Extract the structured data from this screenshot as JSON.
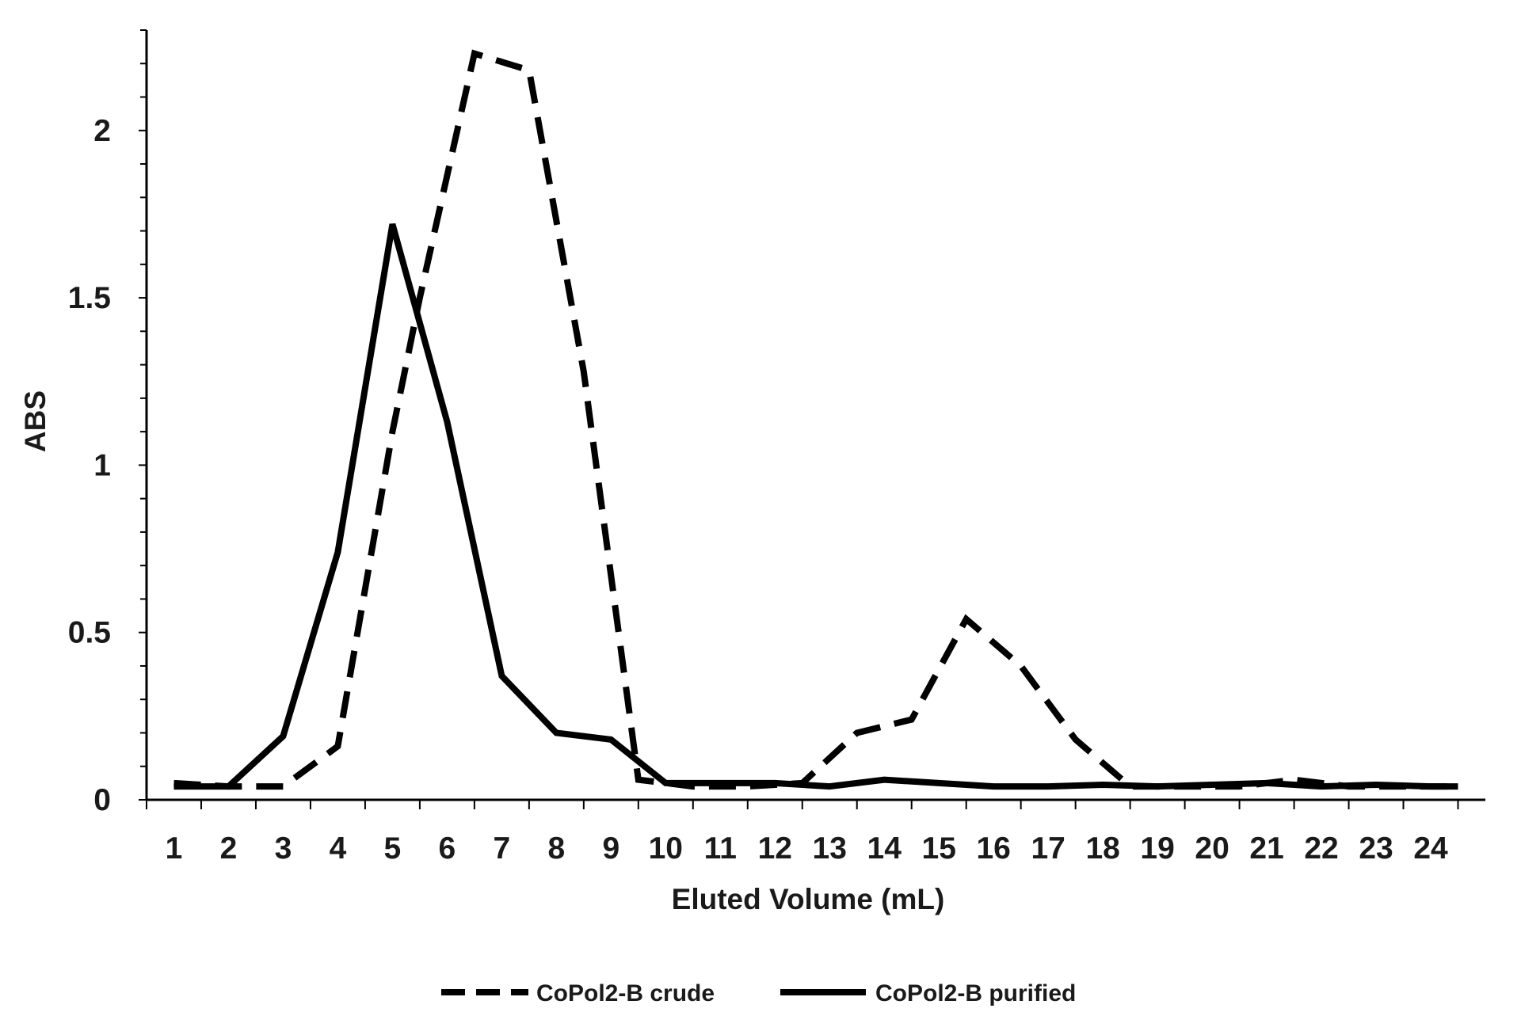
{
  "chart_data": {
    "type": "line",
    "title": "",
    "xlabel": "Eluted Volume (mL)",
    "ylabel": "ABS",
    "categories": [
      "1",
      "2",
      "3",
      "4",
      "5",
      "6",
      "7",
      "8",
      "9",
      "10",
      "11",
      "12",
      "13",
      "14",
      "15",
      "16",
      "17",
      "18",
      "19",
      "20",
      "21",
      "22",
      "23",
      "24"
    ],
    "y_ticks": [
      "0",
      "0.5",
      "1",
      "1.5",
      "2"
    ],
    "ylim": [
      0,
      2.3
    ],
    "grid": false,
    "legend_position": "bottom",
    "series": [
      {
        "name": "CoPol2-B crude",
        "style": "dashed",
        "color": "#000000",
        "x": [
          1,
          2,
          3,
          4,
          5,
          5.5,
          6.5,
          7.5,
          8.5,
          9.5,
          10.5,
          11.5,
          12.5,
          13.5,
          14.5,
          15.5,
          16.5,
          17.5,
          18.5,
          19.5,
          20.5,
          21.5,
          22.5,
          23.5,
          24.5
        ],
        "values": [
          0.05,
          0.04,
          0.04,
          0.16,
          1.1,
          1.5,
          2.23,
          2.18,
          1.28,
          0.06,
          0.04,
          0.04,
          0.05,
          0.2,
          0.24,
          0.54,
          0.4,
          0.18,
          0.04,
          0.04,
          0.04,
          0.06,
          0.04,
          0.04,
          0.04
        ]
      },
      {
        "name": "CoPol2-B purified",
        "style": "solid",
        "color": "#000000",
        "x": [
          1,
          2,
          3,
          4,
          5,
          6,
          7,
          8,
          9,
          10,
          11,
          12,
          13,
          14,
          15,
          16,
          17,
          18,
          19,
          20,
          21,
          22,
          23,
          24,
          24.5
        ],
        "values": [
          0.04,
          0.04,
          0.19,
          0.74,
          1.72,
          1.13,
          0.37,
          0.2,
          0.18,
          0.05,
          0.05,
          0.05,
          0.04,
          0.06,
          0.05,
          0.04,
          0.04,
          0.045,
          0.04,
          0.045,
          0.05,
          0.04,
          0.045,
          0.04,
          0.04
        ]
      }
    ]
  }
}
